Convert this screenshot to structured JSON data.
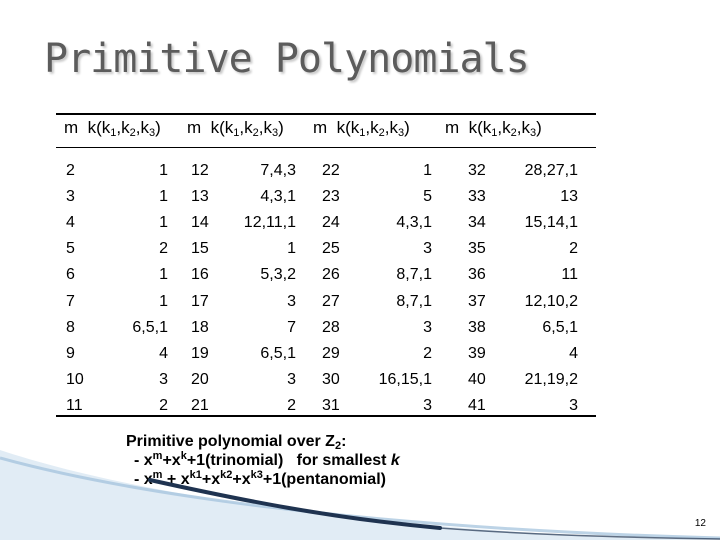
{
  "slide": {
    "title": "Primitive Polynomials",
    "page_number": "12"
  },
  "table": {
    "header_groups": [
      {
        "m": "m",
        "k_prefix": "k(k",
        "s1": "1",
        "c1": ",k",
        "s2": "2",
        "c2": ",k",
        "s3": "3",
        "close": ")"
      },
      {
        "m": "m",
        "k_prefix": "k(k",
        "s1": "1",
        "c1": ",k",
        "s2": "2",
        "c2": ",k",
        "s3": "3",
        "close": ")"
      },
      {
        "m": "m",
        "k_prefix": "k(k",
        "s1": "1",
        "c1": ",k",
        "s2": "2",
        "c2": ",k",
        "s3": "3",
        "close": ")"
      },
      {
        "m": "m",
        "k_prefix": "k(k",
        "s1": "1",
        "c1": ",k",
        "s2": "2",
        "c2": ",k",
        "s3": "3",
        "close": ")"
      }
    ],
    "rows": [
      [
        "2",
        "1",
        "12",
        "7,4,3",
        "22",
        "1",
        "32",
        "28,27,1"
      ],
      [
        "3",
        "1",
        "13",
        "4,3,1",
        "23",
        "5",
        "33",
        "13"
      ],
      [
        "4",
        "1",
        "14",
        "12,11,1",
        "24",
        "4,3,1",
        "34",
        "15,14,1"
      ],
      [
        "5",
        "2",
        "15",
        "1",
        "25",
        "3",
        "35",
        "2"
      ],
      [
        "6",
        "1",
        "16",
        "5,3,2",
        "26",
        "8,7,1",
        "36",
        "11"
      ],
      [
        "7",
        "1",
        "17",
        "3",
        "27",
        "8,7,1",
        "37",
        "12,10,2"
      ],
      [
        "8",
        "6,5,1",
        "18",
        "7",
        "28",
        "3",
        "38",
        "6,5,1"
      ],
      [
        "9",
        "4",
        "19",
        "6,5,1",
        "29",
        "2",
        "39",
        "4"
      ],
      [
        "10",
        "3",
        "20",
        "3",
        "30",
        "16,15,1",
        "40",
        "21,19,2"
      ],
      [
        "11",
        "2",
        "21",
        "2",
        "31",
        "3",
        "41",
        "3"
      ]
    ]
  },
  "note": {
    "line1_text": "Primitive polynomial over Z",
    "line1_sub": "2",
    "line1_end": ":",
    "line2_a": "- x",
    "line2_sup1": "m",
    "line2_b": "+x",
    "line2_sup2": "k",
    "line2_c": "+1(trinomial)   for smallest ",
    "line2_k": "k",
    "line3_a": "- x",
    "line3_sup1": "m",
    "line3_b": " + x",
    "line3_sup2": "k1",
    "line3_c": "+x",
    "line3_sup3": "k2",
    "line3_d": "+x",
    "line3_sup4": "k3",
    "line3_e": "+1(pentanomial)"
  },
  "colors": {
    "title": "#5c5c5c",
    "swoosh_dark": "#1f3350",
    "swoosh_light": "#a9c7e0"
  }
}
